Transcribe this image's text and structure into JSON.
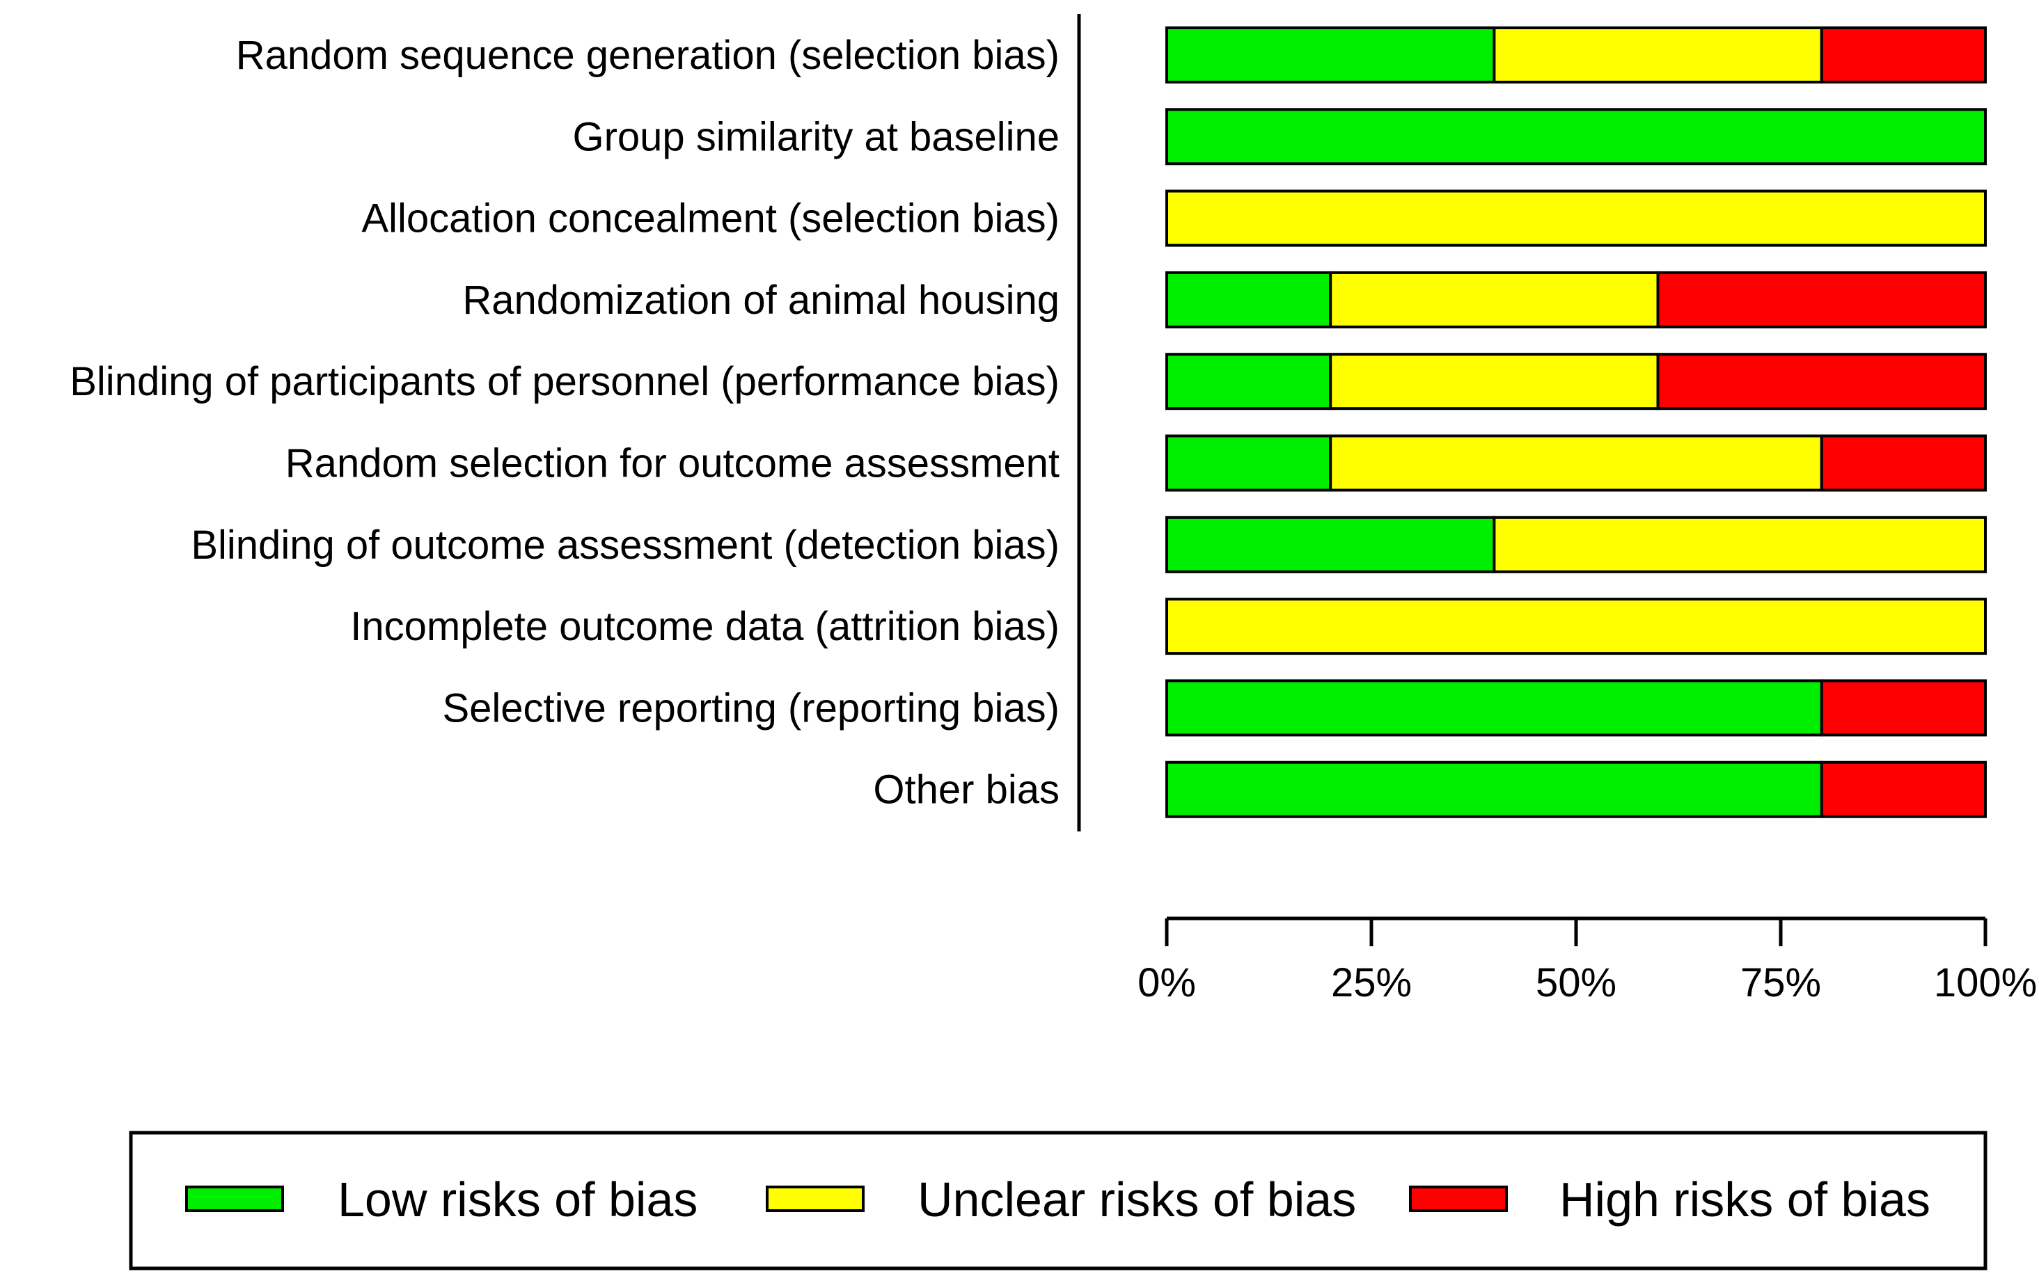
{
  "chart_data": {
    "type": "bar",
    "orientation": "horizontal",
    "stacked": true,
    "percent": true,
    "categories": [
      "Random sequence generation (selection bias)",
      "Group similarity at baseline",
      "Allocation concealment (selection bias)",
      "Randomization of animal housing",
      "Blinding of participants of personnel (performance bias)",
      "Random selection for outcome assessment",
      "Blinding of outcome assessment (detection bias)",
      "Incomplete outcome data (attrition bias)",
      "Selective reporting (reporting bias)",
      "Other bias"
    ],
    "series": [
      {
        "name": "Low risks of bias",
        "color": "#00ee00",
        "values": [
          40,
          100,
          0,
          20,
          20,
          20,
          40,
          0,
          80,
          80
        ]
      },
      {
        "name": "Unclear risks of bias",
        "color": "#ffff00",
        "values": [
          40,
          0,
          100,
          40,
          40,
          60,
          60,
          100,
          0,
          0
        ]
      },
      {
        "name": "High risks of bias",
        "color": "#ff0000",
        "values": [
          20,
          0,
          0,
          40,
          40,
          20,
          0,
          0,
          20,
          20
        ]
      }
    ],
    "xlim": [
      0,
      100
    ],
    "xticks": [
      0,
      25,
      50,
      75,
      100
    ],
    "tick_labels": [
      "0%",
      "25%",
      "50%",
      "75%",
      "100%"
    ],
    "legend_position": "bottom",
    "title": "",
    "xlabel": "",
    "ylabel": ""
  }
}
